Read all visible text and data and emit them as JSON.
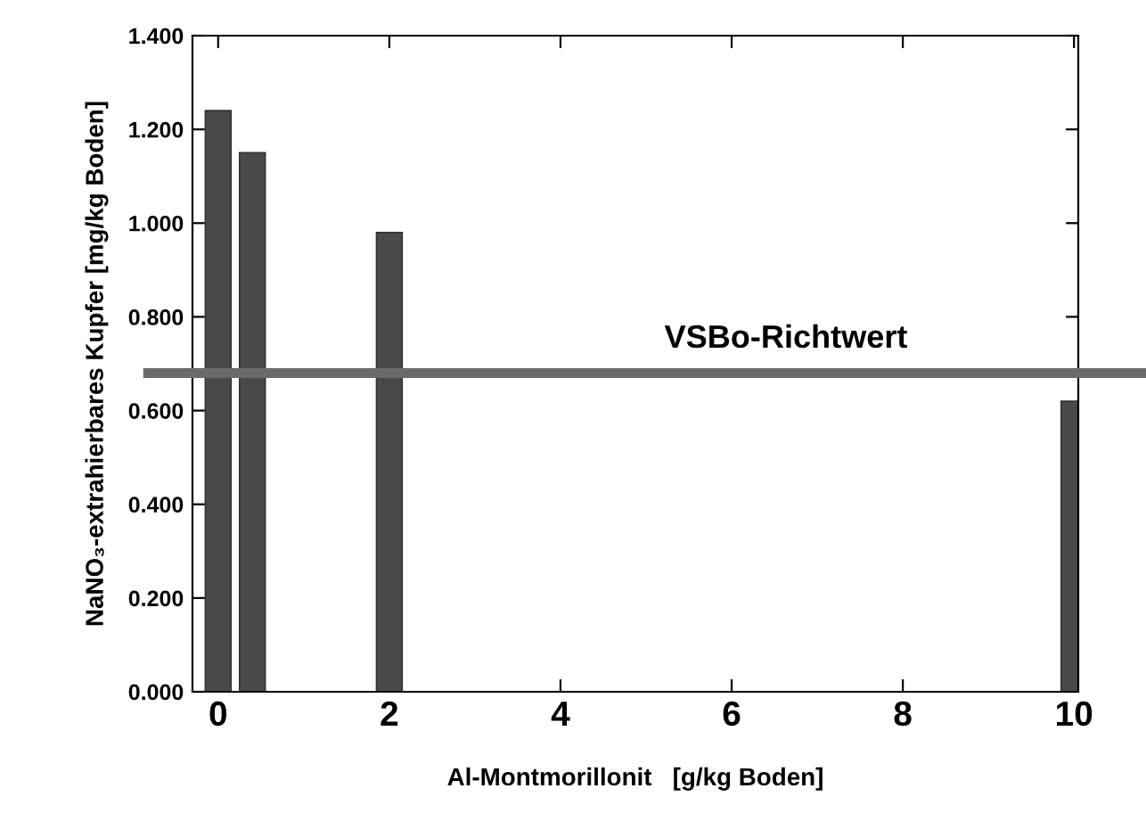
{
  "chart_data": {
    "type": "bar",
    "xlabel": "Al-Montmorillonit   [g/kg Boden]",
    "ylabel": "NaNO₃-extrahierbares Kupfer [mg/kg Boden]",
    "x": [
      0,
      0.4,
      2,
      10
    ],
    "values": [
      1.24,
      1.15,
      0.98,
      0.62
    ],
    "color": "#4a4a4a",
    "xlim": [
      -0.3,
      10.05
    ],
    "xticks": [
      0,
      2,
      4,
      6,
      8,
      10
    ],
    "ylim": [
      0,
      1.4
    ],
    "yticks": [
      {
        "value": 0,
        "label": "0.000"
      },
      {
        "value": 0.2,
        "label": "0.200"
      },
      {
        "value": 0.4,
        "label": "0.400"
      },
      {
        "value": 0.6,
        "label": "0.600"
      },
      {
        "value": 0.8,
        "label": "0.800"
      },
      {
        "value": 1.0,
        "label": "1.000"
      },
      {
        "value": 1.2,
        "label": "1.200"
      },
      {
        "value": 1.4,
        "label": "1.400"
      }
    ],
    "ref_lines": [
      {
        "axis": "y",
        "value": 0.68,
        "label": "VSBo-Richtwert",
        "color": "#6a6a6a"
      }
    ],
    "grid": false,
    "legend": false
  }
}
